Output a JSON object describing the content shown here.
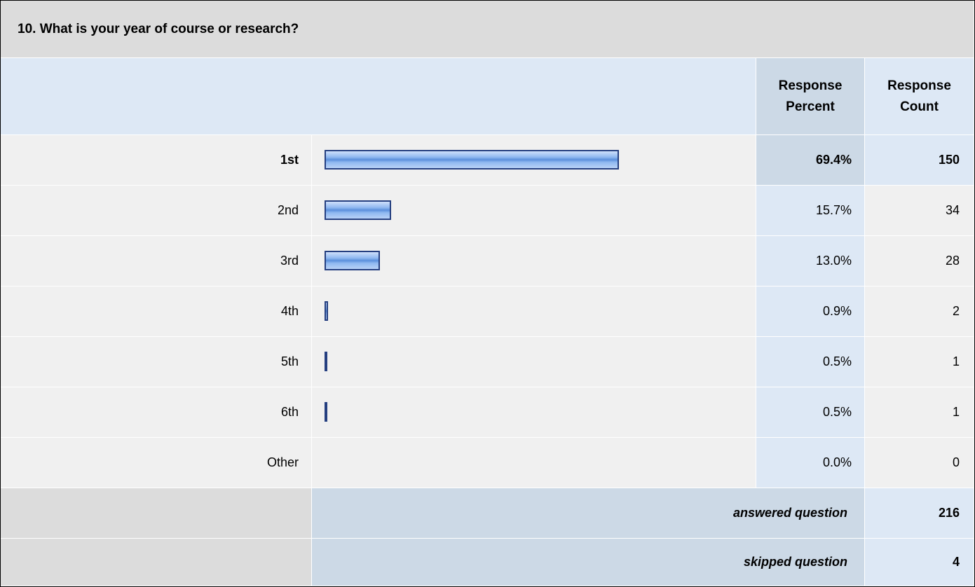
{
  "title": "10. What is your year of course or research?",
  "header": {
    "percent": "Response Percent",
    "count": "Response Count"
  },
  "rows": [
    {
      "label": "1st",
      "value": 69.4,
      "value_label": "69.4%",
      "count": 150
    },
    {
      "label": "2nd",
      "value": 15.7,
      "value_label": "15.7%",
      "count": 34
    },
    {
      "label": "3rd",
      "value": 13.0,
      "value_label": "13.0%",
      "count": 28
    },
    {
      "label": "4th",
      "value": 0.9,
      "value_label": "0.9%",
      "count": 2
    },
    {
      "label": "5th",
      "value": 0.5,
      "value_label": "0.5%",
      "count": 1
    },
    {
      "label": "6th",
      "value": 0.5,
      "value_label": "0.5%",
      "count": 1
    },
    {
      "label": "Other",
      "value": 0.0,
      "value_label": "0.0%",
      "count": 0
    }
  ],
  "xlim": [
    0,
    100
  ],
  "footer": [
    {
      "label": "answered question",
      "count": 216
    },
    {
      "label": "skipped question",
      "count": 4
    }
  ]
}
